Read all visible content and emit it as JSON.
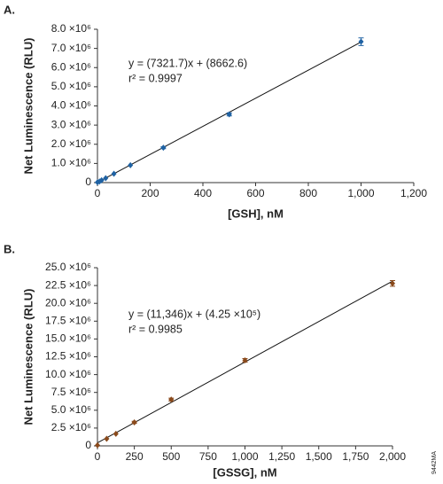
{
  "chart_data": [
    {
      "type": "scatter",
      "title": "A.",
      "x_label": "[GSH], nM",
      "y_label": "Net Luminescence (RLU)",
      "annotations": [
        "y = (7321.7)x + (8662.6)",
        "r² = 0.9997"
      ],
      "trendline": {
        "slope": 7321.7,
        "intercept": 8662.6
      },
      "series": [
        {
          "color": "#1f62a3",
          "x": [
            0,
            7.8,
            15.6,
            31.25,
            62.5,
            125,
            250,
            500,
            1000
          ],
          "values": [
            20000,
            60000,
            120000,
            230000,
            460000,
            910000,
            1820000,
            3560000,
            7350000
          ],
          "errors": [
            null,
            null,
            null,
            null,
            null,
            null,
            50000,
            80000,
            200000
          ]
        }
      ],
      "xlim": [
        0,
        1200
      ],
      "xticks": [
        0,
        200,
        400,
        600,
        800,
        {
          "value": 1000,
          "label": "1,000"
        },
        {
          "value": 1200,
          "label": "1,200"
        }
      ],
      "ylim": [
        0,
        8000000
      ],
      "yticks": [
        0,
        {
          "value": 1000000,
          "label": "1.0 ×10⁶"
        },
        {
          "value": 2000000,
          "label": "2.0 ×10⁶"
        },
        {
          "value": 3000000,
          "label": "3.0 ×10⁶"
        },
        {
          "value": 4000000,
          "label": "4.0 ×10⁶"
        },
        {
          "value": 5000000,
          "label": "5.0 ×10⁶"
        },
        {
          "value": 6000000,
          "label": "6.0 ×10⁶"
        },
        {
          "value": 7000000,
          "label": "7.0 ×10⁶"
        },
        {
          "value": 8000000,
          "label": "8.0 ×10⁶"
        }
      ]
    },
    {
      "type": "scatter",
      "title": "B.",
      "x_label": "[GSSG], nM",
      "y_label": "Net Luminescence (RLU)",
      "annotations": [
        "y = (11,346)x + (4.25 ×10⁵)",
        "r² = 0.9985"
      ],
      "trendline": {
        "slope": 11346,
        "intercept": 425000
      },
      "series": [
        {
          "color": "#8a4a1c",
          "x": [
            0,
            62.5,
            125,
            250,
            500,
            1000,
            2000
          ],
          "values": [
            100000,
            1000000,
            1700000,
            3300000,
            6500000,
            12000000,
            22800000
          ],
          "errors": [
            null,
            null,
            null,
            150000,
            200000,
            250000,
            400000
          ]
        }
      ],
      "xlim": [
        0,
        2000
      ],
      "xticks": [
        0,
        250,
        500,
        750,
        {
          "value": 1000,
          "label": "1,000"
        },
        {
          "value": 1250,
          "label": "1,250"
        },
        {
          "value": 1500,
          "label": "1,500"
        },
        {
          "value": 1750,
          "label": "1,750"
        },
        {
          "value": 2000,
          "label": "2,000"
        }
      ],
      "ylim": [
        0,
        25000000
      ],
      "yticks": [
        0,
        {
          "value": 2500000,
          "label": "2.5 ×10⁶"
        },
        {
          "value": 5000000,
          "label": "5.0 ×10⁶"
        },
        {
          "value": 7500000,
          "label": "7.5 ×10⁶"
        },
        {
          "value": 10000000,
          "label": "10.0 ×10⁶"
        },
        {
          "value": 12500000,
          "label": "12.5 ×10⁶"
        },
        {
          "value": 15000000,
          "label": "15.0 ×10⁶"
        },
        {
          "value": 17500000,
          "label": "17.5 ×10⁶"
        },
        {
          "value": 20000000,
          "label": "20.0 ×10⁶"
        },
        {
          "value": 22500000,
          "label": "22.5 ×10⁶"
        },
        {
          "value": 25000000,
          "label": "25.0 ×10⁶"
        }
      ]
    }
  ],
  "figure_code": "9442MA"
}
